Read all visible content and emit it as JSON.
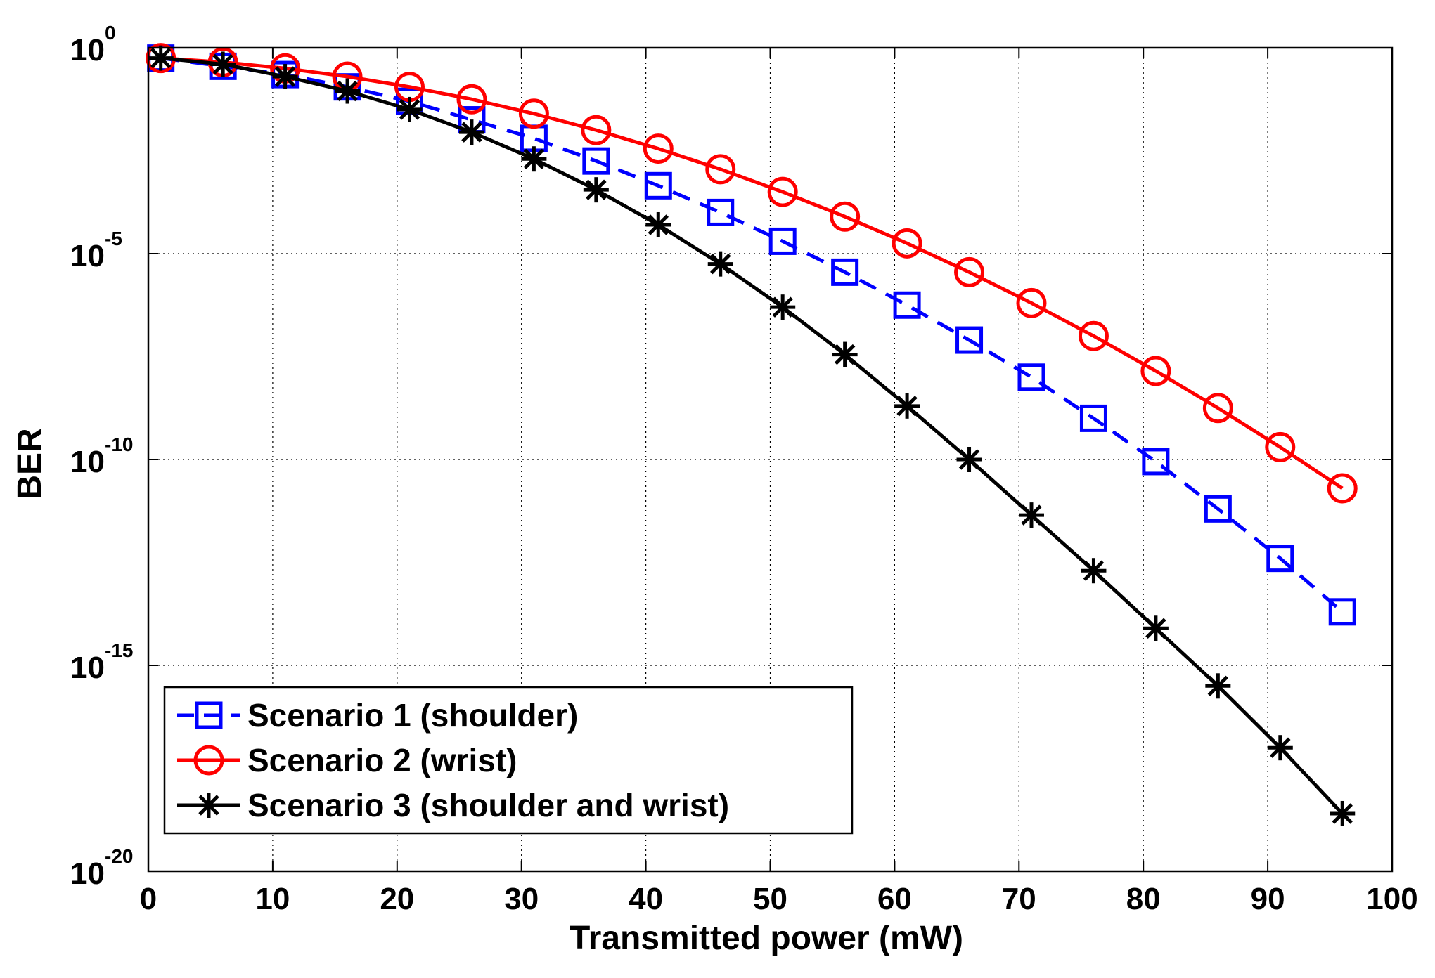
{
  "chart_data": {
    "type": "line",
    "title": "",
    "xlabel": "Transmitted power (mW)",
    "ylabel": "BER",
    "yscale": "log",
    "xlim": [
      0,
      100
    ],
    "ylim_exponent": [
      -20,
      0
    ],
    "grid": true,
    "legend_position": "bottom-left",
    "x_ticks": [
      "0",
      "10",
      "20",
      "30",
      "40",
      "50",
      "60",
      "70",
      "80",
      "90",
      "100"
    ],
    "y_ticks": [
      {
        "base": "10",
        "exp": "0"
      },
      {
        "base": "10",
        "exp": "-5"
      },
      {
        "base": "10",
        "exp": "-10"
      },
      {
        "base": "10",
        "exp": "-15"
      },
      {
        "base": "10",
        "exp": "-20"
      }
    ],
    "x": [
      1,
      6,
      11,
      16,
      21,
      26,
      31,
      36,
      41,
      46,
      51,
      56,
      61,
      66,
      71,
      76,
      81,
      86,
      91,
      96
    ],
    "series": [
      {
        "name": "Scenario 1 (shoulder)",
        "color": "#0000ff",
        "line_style": "dashed",
        "marker": "square",
        "log10_values": [
          -0.25,
          -0.45,
          -0.65,
          -0.95,
          -1.3,
          -1.75,
          -2.2,
          -2.75,
          -3.35,
          -4.0,
          -4.7,
          -5.45,
          -6.25,
          -7.1,
          -8.0,
          -9.0,
          -10.05,
          -11.2,
          -12.4,
          -13.7
        ]
      },
      {
        "name": "Scenario 2 (wrist)",
        "color": "#ff0000",
        "line_style": "solid",
        "marker": "circle",
        "log10_values": [
          -0.25,
          -0.35,
          -0.5,
          -0.7,
          -0.95,
          -1.25,
          -1.6,
          -2.0,
          -2.45,
          -2.95,
          -3.5,
          -4.1,
          -4.75,
          -5.45,
          -6.2,
          -7.0,
          -7.85,
          -8.75,
          -9.7,
          -10.7
        ]
      },
      {
        "name": "Scenario 3 (shoulder and wrist)",
        "color": "#000000",
        "line_style": "solid",
        "marker": "asterisk",
        "log10_values": [
          -0.25,
          -0.4,
          -0.7,
          -1.05,
          -1.5,
          -2.05,
          -2.7,
          -3.45,
          -4.3,
          -5.25,
          -6.3,
          -7.45,
          -8.7,
          -10.0,
          -11.35,
          -12.7,
          -14.1,
          -15.5,
          -17.0,
          -18.6
        ]
      }
    ]
  }
}
